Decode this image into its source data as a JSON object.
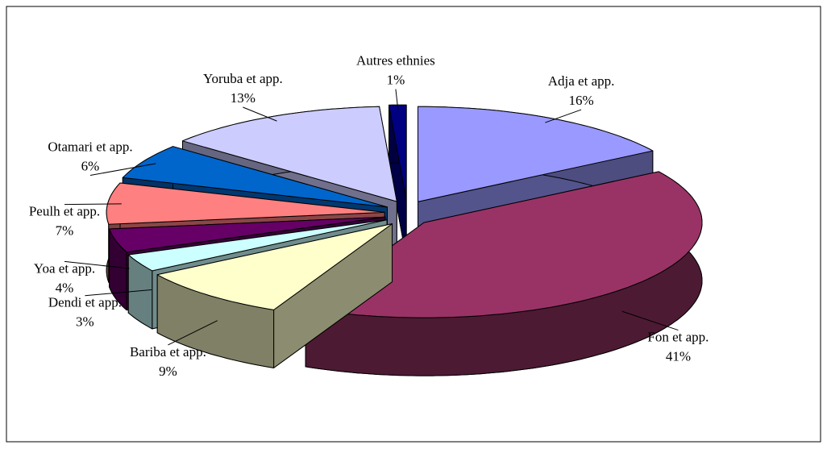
{
  "chart_data": {
    "type": "pie",
    "categories": [
      "Adja et app.",
      "Fon et app.",
      "Bariba et app.",
      "Dendi et app.",
      "Yoa et app.",
      "Peulh et app.",
      "Otamari et app.",
      "Yoruba et app.",
      "Autres ethnies"
    ],
    "values": [
      16,
      41,
      9,
      3,
      4,
      7,
      6,
      13,
      1
    ],
    "value_labels": [
      "16%",
      "41%",
      "9%",
      "3%",
      "4%",
      "7%",
      "6%",
      "13%",
      "1%"
    ],
    "colors": [
      "#9999ff",
      "#993366",
      "#ffffcc",
      "#ccffff",
      "#660066",
      "#ff8080",
      "#0066cc",
      "#ccccff",
      "#000080"
    ]
  }
}
